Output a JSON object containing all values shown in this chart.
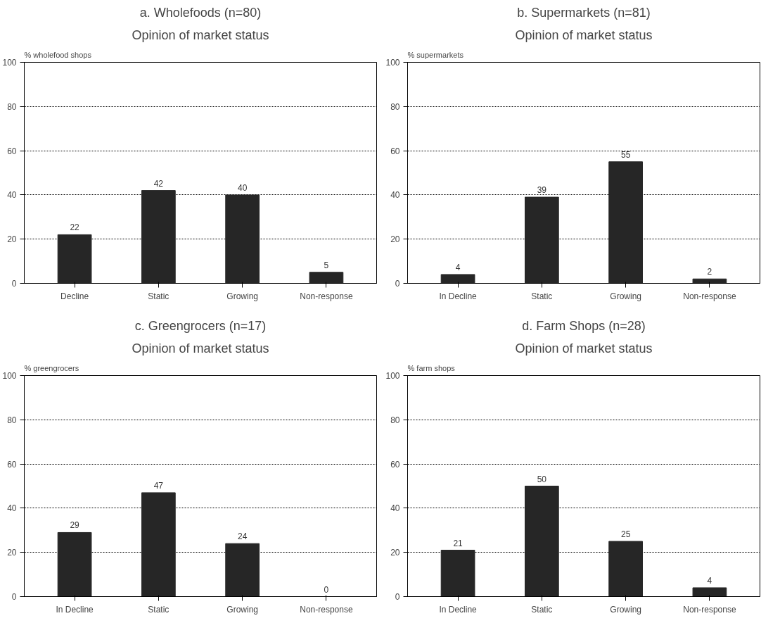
{
  "chart_data": [
    {
      "type": "bar",
      "title": "a. Wholefoods (n=80)",
      "subtitle": "Opinion of market status",
      "ylabel": "% wholefood shops",
      "categories": [
        "Decline",
        "Static",
        "Growing",
        "Non-response"
      ],
      "values": [
        22,
        42,
        40,
        5
      ],
      "color": "#262626",
      "ylim": [
        0,
        100
      ],
      "yticks": [
        0,
        20,
        40,
        60,
        80,
        100
      ],
      "grid": "y",
      "data_labels": true
    },
    {
      "type": "bar",
      "title": "b. Supermarkets (n=81)",
      "subtitle": "Opinion of market status",
      "ylabel": "% supermarkets",
      "categories": [
        "In Decline",
        "Static",
        "Growing",
        "Non-response"
      ],
      "values": [
        4,
        39,
        55,
        2
      ],
      "color": "#262626",
      "ylim": [
        0,
        100
      ],
      "yticks": [
        0,
        20,
        40,
        60,
        80,
        100
      ],
      "grid": "y",
      "data_labels": true
    },
    {
      "type": "bar",
      "title": "c. Greengrocers (n=17)",
      "subtitle": "Opinion of market status",
      "ylabel": "% greengrocers",
      "categories": [
        "In Decline",
        "Static",
        "Growing",
        "Non-response"
      ],
      "values": [
        29,
        47,
        24,
        0
      ],
      "color": "#262626",
      "ylim": [
        0,
        100
      ],
      "yticks": [
        0,
        20,
        40,
        60,
        80,
        100
      ],
      "grid": "y",
      "data_labels": true
    },
    {
      "type": "bar",
      "title": "d. Farm Shops (n=28)",
      "subtitle": "Opinion of market status",
      "ylabel": "% farm shops",
      "categories": [
        "In Decline",
        "Static",
        "Growing",
        "Non-response"
      ],
      "values": [
        21,
        50,
        25,
        4
      ],
      "color": "#262626",
      "ylim": [
        0,
        100
      ],
      "yticks": [
        0,
        20,
        40,
        60,
        80,
        100
      ],
      "grid": "y",
      "data_labels": true
    }
  ]
}
